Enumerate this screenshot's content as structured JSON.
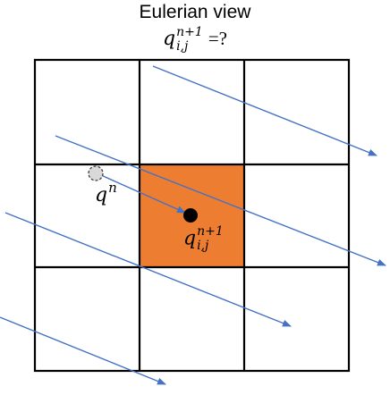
{
  "title": "Eulerian view",
  "question": {
    "base": "q",
    "sup": "n+1",
    "sub": "i,j",
    "suffix": "=?"
  },
  "labels": {
    "departure": {
      "base": "q",
      "sup": "n"
    },
    "target": {
      "base": "q",
      "sup": "n+1",
      "sub": "i,j"
    }
  },
  "colors": {
    "grid": "#000000",
    "highlight_cell": "#ED7D31",
    "arrows": "#4472C4",
    "departure_point": "#D9D9D9",
    "target_point": "#000000"
  },
  "grid": {
    "rows": 3,
    "cols": 3,
    "highlight_row": 1,
    "highlight_col": 1
  }
}
